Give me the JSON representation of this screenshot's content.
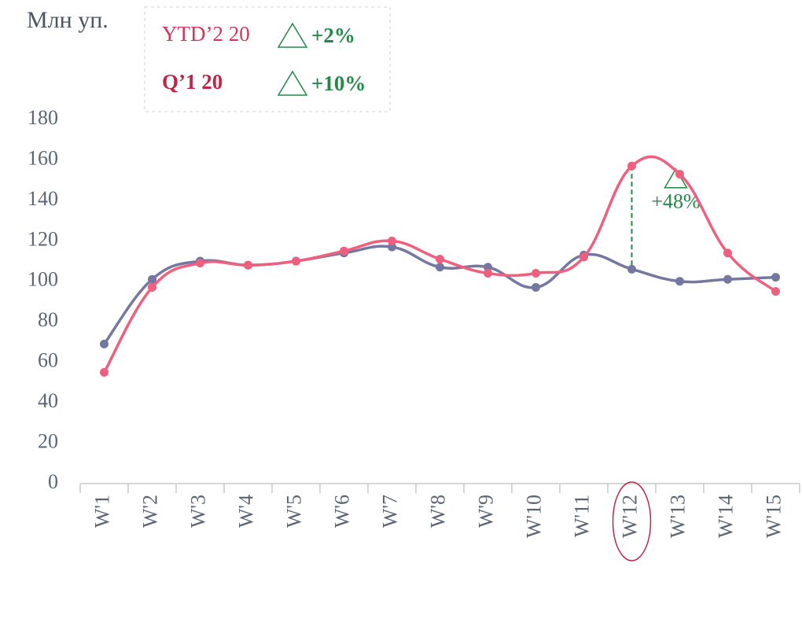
{
  "chart_data": {
    "type": "line",
    "unit_label": "Млн уп.",
    "categories": [
      "W'1",
      "W'2",
      "W'3",
      "W'4",
      "W'5",
      "W'6",
      "W'7",
      "W'8",
      "W'9",
      "W'10",
      "W'11",
      "W'12",
      "W'13",
      "W'14",
      "W'15"
    ],
    "series": [
      {
        "color": "#7478a0",
        "values": [
          69,
          101,
          110,
          108,
          110,
          114,
          117,
          107,
          107,
          97,
          113,
          106,
          100,
          101,
          102
        ]
      },
      {
        "color": "#f0607e",
        "values": [
          55,
          97,
          109,
          108,
          110,
          115,
          120,
          111,
          104,
          104,
          112,
          157,
          153,
          114,
          95
        ]
      }
    ],
    "ylim": [
      0,
      180
    ],
    "yticks": [
      0,
      20,
      40,
      60,
      80,
      100,
      120,
      140,
      160,
      180
    ],
    "legend_notes": [
      {
        "label": "YTD’2 20",
        "color": "#d8345a",
        "bold": false,
        "change": "+2%"
      },
      {
        "label": "Q’1 20",
        "color": "#c0264a",
        "bold": true,
        "change": "+10%"
      }
    ],
    "annotation": {
      "text": "+48%",
      "category": "W'12",
      "color": "#1e8a46"
    }
  }
}
